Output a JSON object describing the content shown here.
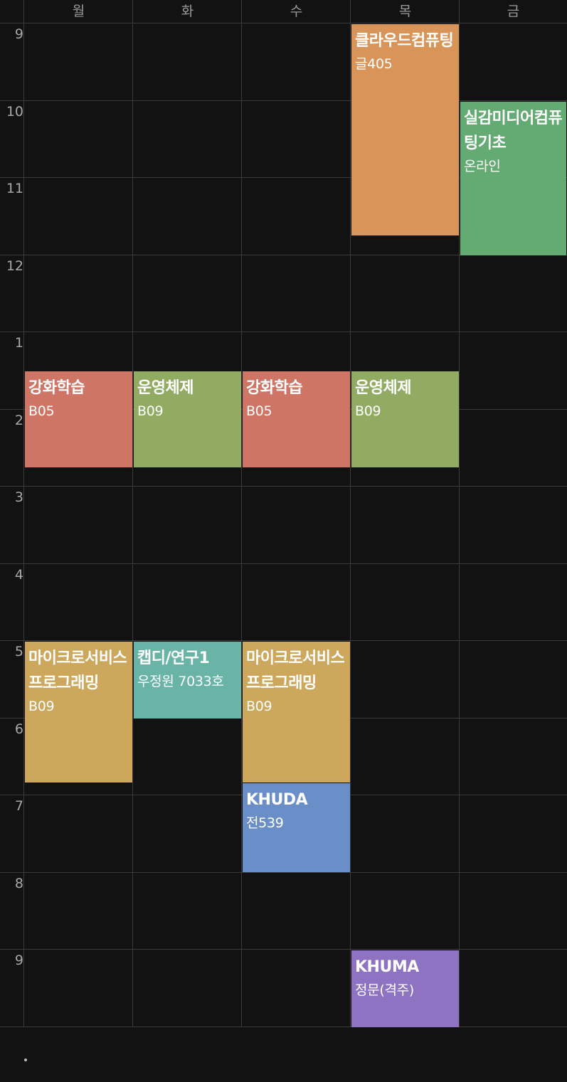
{
  "days": [
    "월",
    "화",
    "수",
    "목",
    "금"
  ],
  "hours": [
    "9",
    "10",
    "11",
    "12",
    "1",
    "2",
    "3",
    "4",
    "5",
    "6",
    "7",
    "8",
    "9"
  ],
  "colors": {
    "background": "#121212",
    "grid_line": "#3a3a3a",
    "label_text": "#9a9a9a"
  },
  "courses": [
    {
      "name": "클라우드컴퓨팅",
      "room": "글405",
      "day": 3,
      "start_hour": 9,
      "end_hour": 11.75,
      "color": "#d99559"
    },
    {
      "name": "실감미디어컴퓨팅기초",
      "room": "온라인",
      "day": 4,
      "start_hour": 10,
      "end_hour": 12,
      "color": "#63ab72"
    },
    {
      "name": "강화학습",
      "room": "B05",
      "day": 0,
      "start_hour": 13.5,
      "end_hour": 14.75,
      "color": "#cf7566"
    },
    {
      "name": "운영체제",
      "room": "B09",
      "day": 1,
      "start_hour": 13.5,
      "end_hour": 14.75,
      "color": "#92ab63"
    },
    {
      "name": "강화학습",
      "room": "B05",
      "day": 2,
      "start_hour": 13.5,
      "end_hour": 14.75,
      "color": "#cf7566"
    },
    {
      "name": "운영체제",
      "room": "B09",
      "day": 3,
      "start_hour": 13.5,
      "end_hour": 14.75,
      "color": "#92ab63"
    },
    {
      "name": "마이크로서비스프로그래밍",
      "room": "B09",
      "day": 0,
      "start_hour": 17,
      "end_hour": 18.833,
      "color": "#cca75c"
    },
    {
      "name": "캡디/연구1",
      "room": "우정원 7033호",
      "day": 1,
      "start_hour": 17,
      "end_hour": 18,
      "color": "#69b3a7"
    },
    {
      "name": "마이크로서비스프로그래밍",
      "room": "B09",
      "day": 2,
      "start_hour": 17,
      "end_hour": 18.833,
      "color": "#cca75c"
    },
    {
      "name": "KHUDA",
      "room": "전539",
      "day": 2,
      "start_hour": 18.833,
      "end_hour": 20,
      "color": "#6a8ec7"
    },
    {
      "name": "KHUMA",
      "room": "정문(격주)",
      "day": 3,
      "start_hour": 21,
      "end_hour": 22,
      "color": "#8d73c1"
    }
  ]
}
